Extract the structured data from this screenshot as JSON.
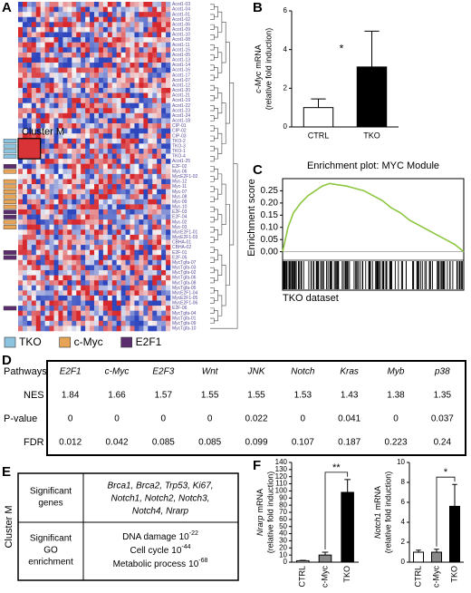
{
  "panel_letters": [
    "A",
    "B",
    "C",
    "D",
    "E",
    "F"
  ],
  "heatmap": {
    "cluster_label": "Cluster M",
    "row_labels": [
      "Acot1-03",
      "Acot1-04",
      "Acot1-01",
      "Acot1-02",
      "Acot1-06",
      "Acot1-09",
      "Acot1-10",
      "Acot1-08",
      "Acot1-11",
      "Acot1-15",
      "Acot1-05",
      "Acot1-13",
      "Acot1-14",
      "Acot1-16",
      "Acot1-17",
      "Acot1-07",
      "Acot1-12",
      "Acot1-20",
      "Acot1-21",
      "Acot1-19",
      "Acot1-22",
      "Acot1-23",
      "Acot1-24",
      "Acot1-18",
      "CIP-01",
      "CIP-02",
      "CIP-03",
      "TKO-2",
      "TKO-3",
      "TKO-1",
      "TKO-4",
      "Acot1-25",
      "E2F-02",
      "Myc-06",
      "MycE2F1-02",
      "Myc-12",
      "Myc-11",
      "Myc-07",
      "Myc-08",
      "Myc-09",
      "Myc-10",
      "E2F-03",
      "E2F-04",
      "Myc-02",
      "Myc-03",
      "MycE2F1-01",
      "MycE2F1-03",
      "CBHA-01",
      "CBHA-02",
      "E2F-01",
      "E2F-05",
      "MycTgfa-07",
      "MycTgfa-03",
      "MycTgfa-02",
      "MycTgfa-06",
      "MycTgfa-08",
      "MycTgfa-05",
      "MycE2F1-04",
      "MycE2F1-05",
      "MycE2F1-06",
      "E2F-06",
      "MycTgfa-04",
      "MycTgfa-01",
      "MycTgfa-09",
      "MycTgfa-10"
    ],
    "row_groups": [
      null,
      null,
      null,
      null,
      null,
      null,
      null,
      null,
      null,
      null,
      null,
      null,
      null,
      null,
      null,
      null,
      null,
      null,
      null,
      null,
      null,
      null,
      null,
      null,
      null,
      null,
      null,
      "TKO",
      "TKO",
      "TKO",
      "TKO",
      null,
      "E2F1",
      "c-Myc",
      null,
      "c-Myc",
      "c-Myc",
      "c-Myc",
      "c-Myc",
      "c-Myc",
      "c-Myc",
      "E2F1",
      "E2F1",
      "c-Myc",
      "c-Myc",
      null,
      null,
      null,
      null,
      "E2F1",
      "E2F1",
      null,
      null,
      null,
      null,
      null,
      null,
      null,
      null,
      null,
      "E2F1",
      null,
      null,
      null,
      null
    ],
    "legend": [
      {
        "name": "TKO",
        "color": "#8cc4e0"
      },
      {
        "name": "c-Myc",
        "color": "#e8a456"
      },
      {
        "name": "E2F1",
        "color": "#5b2d6e"
      }
    ]
  },
  "chart_data": [
    {
      "type": "bar",
      "y_label_gene": "c-Myc",
      "y_label_rest": "mRNA",
      "y_label_2": "(relative fold induction)",
      "categories": [
        "CTRL",
        "TKO"
      ],
      "values": [
        1.0,
        3.1
      ],
      "errors": [
        0.45,
        1.85
      ],
      "colors": [
        "#ffffff",
        "#000000"
      ],
      "ylim": [
        0,
        6
      ],
      "yticks": [
        0,
        2,
        4,
        6
      ],
      "significance": "*"
    },
    {
      "type": "line",
      "title": "Enrichment plot: MYC Module",
      "y_label": "Enrichment score",
      "x_label": "TKO dataset",
      "x": [
        0,
        0.03,
        0.06,
        0.1,
        0.14,
        0.18,
        0.22,
        0.26,
        0.3,
        0.35,
        0.4,
        0.45,
        0.5,
        0.55,
        0.6,
        0.65,
        0.7,
        0.75,
        0.8,
        0.85,
        0.9,
        0.95,
        1.0
      ],
      "values": [
        0,
        0.1,
        0.16,
        0.2,
        0.23,
        0.25,
        0.27,
        0.28,
        0.275,
        0.27,
        0.26,
        0.25,
        0.23,
        0.21,
        0.18,
        0.16,
        0.13,
        0.11,
        0.09,
        0.07,
        0.05,
        0.03,
        0.0
      ],
      "color": "#8dc63f",
      "xlim": [
        0,
        1
      ],
      "ylim": [
        -0.02,
        0.3
      ],
      "yticks": [
        {
          "value": 0,
          "label": "0.00"
        },
        0.05,
        {
          "value": 0.1,
          "label": "0.10"
        },
        0.15,
        {
          "value": 0.2,
          "label": "0.20"
        },
        0.25
      ]
    },
    {
      "type": "bar",
      "y_label_gene": "Nrarp",
      "y_label_rest": "mRNA",
      "y_label_2": "(relative fold induction)",
      "categories": [
        "CTRL",
        "c-Myc",
        "TKO"
      ],
      "values": [
        2,
        10,
        98
      ],
      "errors": [
        0.5,
        4,
        18
      ],
      "colors": [
        "#ffffff",
        "#888888",
        "#000000"
      ],
      "ylim": [
        0,
        140
      ],
      "yticks": [
        0,
        10,
        20,
        30,
        40,
        50,
        60,
        70,
        80,
        90,
        100,
        110,
        120,
        130,
        140
      ],
      "significance": "**"
    },
    {
      "type": "bar",
      "y_label_gene": "Notch1",
      "y_label_rest": "mRNA",
      "y_label_2": "(relative fold induction)",
      "categories": [
        "CTRL",
        "c-Myc",
        "TKO"
      ],
      "values": [
        1,
        1,
        5.6
      ],
      "errors": [
        0.2,
        0.3,
        2.2
      ],
      "colors": [
        "#ffffff",
        "#888888",
        "#000000"
      ],
      "ylim": [
        0,
        10
      ],
      "yticks": [
        0,
        2,
        4,
        6,
        8,
        10
      ],
      "significance": "*"
    }
  ],
  "table_d": {
    "header": "Pathways",
    "columns": [
      "E2F1",
      "c-Myc",
      "E2F3",
      "Wnt",
      "JNK",
      "Notch",
      "Kras",
      "Myb",
      "p38"
    ],
    "rows": [
      {
        "label": "NES",
        "values": [
          1.84,
          1.66,
          1.57,
          1.55,
          1.55,
          1.53,
          1.43,
          1.38,
          1.35
        ]
      },
      {
        "label": "P-value",
        "values": [
          0,
          0,
          0,
          0,
          0.022,
          0,
          0.041,
          0,
          0.037
        ]
      },
      {
        "label": "FDR",
        "values": [
          0.012,
          0.042,
          0.085,
          0.085,
          0.099,
          0.107,
          0.187,
          0.223,
          0.24
        ]
      }
    ]
  },
  "table_e": {
    "side_label": "Cluster M",
    "genes_label": [
      "Significant",
      "genes"
    ],
    "genes": [
      "Brca1, Brca2, Trp53, Ki67,",
      "Notch1, Notch2, Notch3,",
      "Notch4, Nrarp"
    ],
    "go_label": [
      "Significant",
      "GO",
      "enrichment"
    ],
    "go_terms": [
      {
        "term": "DNA damage",
        "base": "10",
        "exp": "-22"
      },
      {
        "term": "Cell cycle",
        "base": "10",
        "exp": "-44"
      },
      {
        "term": "Metabolic process",
        "base": "10",
        "exp": "-68"
      }
    ]
  }
}
